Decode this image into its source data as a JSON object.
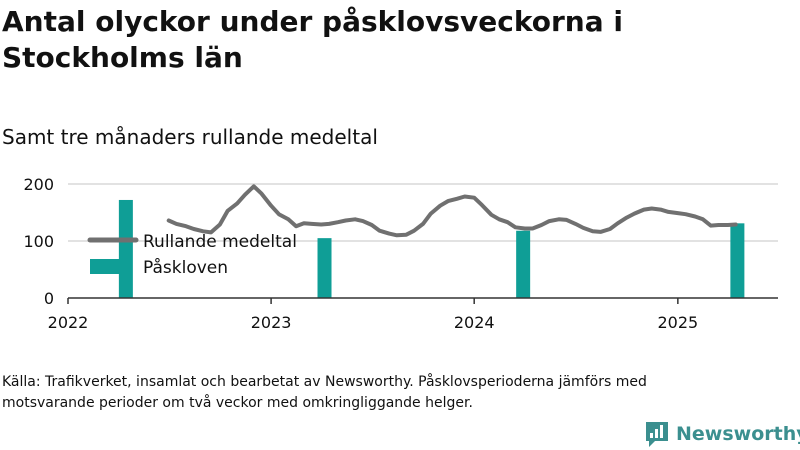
{
  "title": "Antal olyckor under påsklovsveckorna i Stockholms län",
  "subtitle": "Samt tre månaders rullande medeltal",
  "source": "Källa: Trafikverket, insamlat och bearbetat av Newsworthy. Påsklovsperioderna jämförs med motsvarande perioder om två veckor med omkringliggande helger.",
  "brand": {
    "name": "Newsworthy"
  },
  "colors": {
    "line": "#707070",
    "bar": "#0f9e96",
    "grid": "#d8d8d8",
    "axis": "#333333",
    "brand": "#3b8f8f"
  },
  "chart_data": {
    "type": "bar+line",
    "x_axis": {
      "type": "date",
      "range": [
        "2022-01-01",
        "2025-06-30"
      ],
      "ticks": [
        "2022",
        "2023",
        "2024",
        "2025"
      ]
    },
    "y_axis": {
      "range": [
        0,
        200
      ],
      "ticks": [
        0,
        100,
        200
      ]
    },
    "grid": true,
    "legend": {
      "placement": "top-left",
      "entries": [
        "Rullande medeltal",
        "Påskloven"
      ]
    },
    "series": [
      {
        "name": "Påskloven",
        "type": "bar",
        "points": [
          {
            "date": "2022-04-15",
            "value": 172
          },
          {
            "date": "2023-04-07",
            "value": 105
          },
          {
            "date": "2024-03-29",
            "value": 118
          },
          {
            "date": "2025-04-18",
            "value": 131
          }
        ]
      },
      {
        "name": "Rullande medeltal",
        "type": "line",
        "points": [
          {
            "date": "2022-07-01",
            "value": 136
          },
          {
            "date": "2022-07-15",
            "value": 130
          },
          {
            "date": "2022-08-01",
            "value": 126
          },
          {
            "date": "2022-08-15",
            "value": 121
          },
          {
            "date": "2022-09-01",
            "value": 117
          },
          {
            "date": "2022-09-15",
            "value": 115
          },
          {
            "date": "2022-10-01",
            "value": 129
          },
          {
            "date": "2022-10-15",
            "value": 153
          },
          {
            "date": "2022-11-01",
            "value": 166
          },
          {
            "date": "2022-11-15",
            "value": 181
          },
          {
            "date": "2022-12-01",
            "value": 196
          },
          {
            "date": "2022-12-15",
            "value": 183
          },
          {
            "date": "2023-01-01",
            "value": 162
          },
          {
            "date": "2023-01-15",
            "value": 147
          },
          {
            "date": "2023-02-01",
            "value": 138
          },
          {
            "date": "2023-02-15",
            "value": 126
          },
          {
            "date": "2023-03-01",
            "value": 131
          },
          {
            "date": "2023-03-15",
            "value": 130
          },
          {
            "date": "2023-04-01",
            "value": 129
          },
          {
            "date": "2023-04-15",
            "value": 130
          },
          {
            "date": "2023-05-01",
            "value": 133
          },
          {
            "date": "2023-05-15",
            "value": 136
          },
          {
            "date": "2023-06-01",
            "value": 138
          },
          {
            "date": "2023-06-15",
            "value": 135
          },
          {
            "date": "2023-07-01",
            "value": 128
          },
          {
            "date": "2023-07-15",
            "value": 118
          },
          {
            "date": "2023-08-01",
            "value": 113
          },
          {
            "date": "2023-08-15",
            "value": 110
          },
          {
            "date": "2023-09-01",
            "value": 111
          },
          {
            "date": "2023-09-15",
            "value": 118
          },
          {
            "date": "2023-10-01",
            "value": 130
          },
          {
            "date": "2023-10-15",
            "value": 148
          },
          {
            "date": "2023-11-01",
            "value": 162
          },
          {
            "date": "2023-11-15",
            "value": 170
          },
          {
            "date": "2023-12-01",
            "value": 174
          },
          {
            "date": "2023-12-15",
            "value": 178
          },
          {
            "date": "2024-01-01",
            "value": 176
          },
          {
            "date": "2024-01-15",
            "value": 163
          },
          {
            "date": "2024-02-01",
            "value": 146
          },
          {
            "date": "2024-02-15",
            "value": 138
          },
          {
            "date": "2024-03-01",
            "value": 133
          },
          {
            "date": "2024-03-15",
            "value": 124
          },
          {
            "date": "2024-04-01",
            "value": 122
          },
          {
            "date": "2024-04-15",
            "value": 122
          },
          {
            "date": "2024-05-01",
            "value": 128
          },
          {
            "date": "2024-05-15",
            "value": 135
          },
          {
            "date": "2024-06-01",
            "value": 138
          },
          {
            "date": "2024-06-15",
            "value": 137
          },
          {
            "date": "2024-07-01",
            "value": 130
          },
          {
            "date": "2024-07-15",
            "value": 123
          },
          {
            "date": "2024-08-01",
            "value": 117
          },
          {
            "date": "2024-08-15",
            "value": 116
          },
          {
            "date": "2024-09-01",
            "value": 121
          },
          {
            "date": "2024-09-15",
            "value": 131
          },
          {
            "date": "2024-10-01",
            "value": 141
          },
          {
            "date": "2024-10-15",
            "value": 148
          },
          {
            "date": "2024-11-01",
            "value": 155
          },
          {
            "date": "2024-11-15",
            "value": 157
          },
          {
            "date": "2024-12-01",
            "value": 155
          },
          {
            "date": "2024-12-15",
            "value": 151
          },
          {
            "date": "2025-01-01",
            "value": 149
          },
          {
            "date": "2025-01-15",
            "value": 147
          },
          {
            "date": "2025-02-01",
            "value": 143
          },
          {
            "date": "2025-02-15",
            "value": 138
          },
          {
            "date": "2025-03-01",
            "value": 127
          },
          {
            "date": "2025-03-15",
            "value": 128
          },
          {
            "date": "2025-04-01",
            "value": 128
          },
          {
            "date": "2025-04-15",
            "value": 129
          }
        ]
      }
    ]
  }
}
